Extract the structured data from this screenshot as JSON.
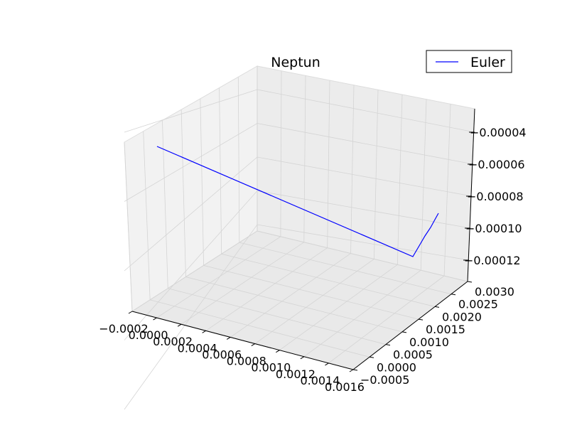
{
  "chart_data": {
    "type": "line",
    "projection": "3d",
    "title": "Neptun",
    "legend": {
      "placement": "top-right",
      "entries": [
        "Euler"
      ]
    },
    "grid": true,
    "xlabel": "",
    "ylabel": "",
    "zlabel": "",
    "x_ticks": [
      "−0.0002",
      "0.0000",
      "0.0002",
      "0.0004",
      "0.0006",
      "0.0008",
      "0.0010",
      "0.0012",
      "0.0014",
      "0.0016"
    ],
    "y_ticks": [
      "−0.0005",
      "0.0000",
      "0.0005",
      "0.0010",
      "0.0015",
      "0.0020",
      "0.0025",
      "0.0030"
    ],
    "z_ticks": [
      "−0.00004",
      "−0.00006",
      "−0.00008",
      "−0.00010",
      "−0.00012"
    ],
    "series": [
      {
        "name": "Euler",
        "color": "#0000ff",
        "points": [
          [
            0.0,
            -0.0005,
            -4e-05
          ],
          [
            0.00145,
            -0.0004,
            -0.00012
          ],
          [
            0.0015,
            0.0,
            -0.000115
          ],
          [
            0.00155,
            0.0008,
            -0.0001
          ],
          [
            0.00158,
            0.002,
            -9e-05
          ]
        ]
      }
    ]
  }
}
